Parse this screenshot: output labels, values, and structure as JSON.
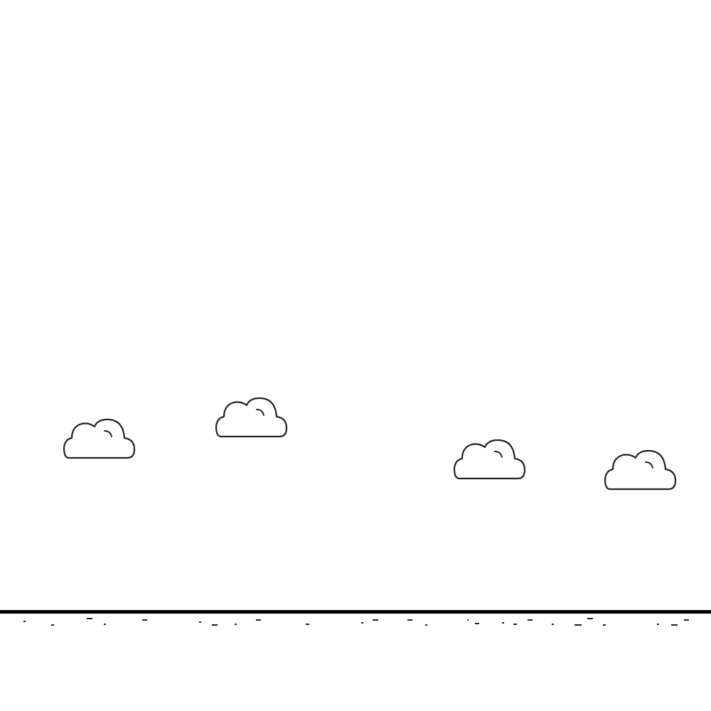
{
  "game": {
    "colors": {
      "background": "#ffffff",
      "ground": "#000000",
      "cloud_stroke": "#222222",
      "cloud_fill": "#ffffff"
    },
    "scene": {
      "clouds": 4,
      "ground": "horizon-line"
    }
  }
}
